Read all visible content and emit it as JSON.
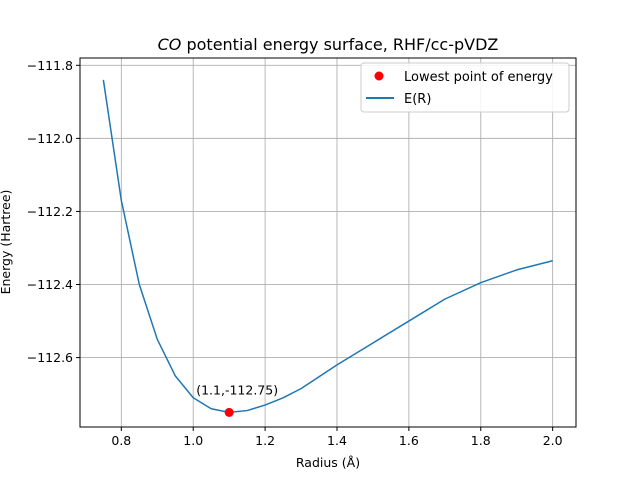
{
  "chart_data": {
    "type": "line",
    "title_mol": "CO",
    "title_rest": " potential energy surface,  RHF/cc-pVDZ",
    "xlabel": "Radius (Å)",
    "ylabel": "Energy (Hartree)",
    "xlim": [
      0.685,
      2.065
    ],
    "ylim": [
      -112.79,
      -111.78
    ],
    "xticks": [
      0.8,
      1.0,
      1.2,
      1.4,
      1.6,
      1.8,
      2.0
    ],
    "xtick_labels": [
      "0.8",
      "1.0",
      "1.2",
      "1.4",
      "1.6",
      "1.8",
      "2.0"
    ],
    "yticks": [
      -111.8,
      -112.0,
      -112.2,
      -112.4,
      -112.6
    ],
    "ytick_labels": [
      "−111.8",
      "−112.0",
      "−112.2",
      "−112.4",
      "−112.6"
    ],
    "grid": true,
    "legend_position": "top-right",
    "series": [
      {
        "name": "E(R)",
        "color": "#1f77b4",
        "x": [
          0.75,
          0.8,
          0.85,
          0.9,
          0.95,
          1.0,
          1.05,
          1.1,
          1.15,
          1.2,
          1.25,
          1.3,
          1.4,
          1.5,
          1.6,
          1.7,
          1.8,
          1.9,
          2.0
        ],
        "y": [
          -111.84,
          -112.17,
          -112.4,
          -112.55,
          -112.65,
          -112.71,
          -112.74,
          -112.75,
          -112.745,
          -112.73,
          -112.71,
          -112.685,
          -112.62,
          -112.56,
          -112.5,
          -112.44,
          -112.395,
          -112.36,
          -112.335
        ]
      }
    ],
    "minimum": {
      "name": "Lowest point of energy",
      "color": "#ff0000",
      "x": 1.1,
      "y": -112.75,
      "label": "(1.1,-112.75)"
    }
  }
}
